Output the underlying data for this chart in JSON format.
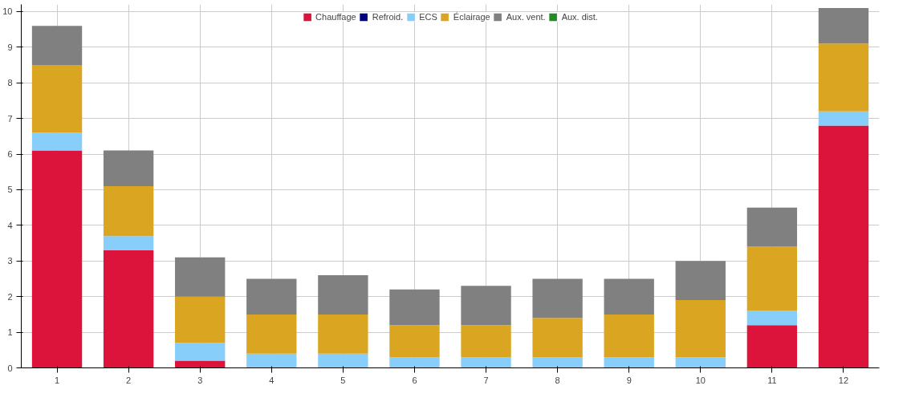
{
  "chart_data": {
    "type": "bar",
    "stacked": true,
    "categories": [
      "1",
      "2",
      "3",
      "4",
      "5",
      "6",
      "7",
      "8",
      "9",
      "10",
      "11",
      "12"
    ],
    "series": [
      {
        "name": "Chauffage",
        "color": "#dc143c",
        "values": [
          6.1,
          3.3,
          0.2,
          0,
          0,
          0,
          0,
          0,
          0,
          0,
          1.2,
          6.8
        ]
      },
      {
        "name": "Refroid.",
        "color": "#000080",
        "values": [
          0,
          0,
          0,
          0,
          0,
          0,
          0,
          0,
          0,
          0,
          0,
          0
        ]
      },
      {
        "name": "ECS",
        "color": "#87cefa",
        "values": [
          0.5,
          0.4,
          0.5,
          0.4,
          0.4,
          0.3,
          0.3,
          0.3,
          0.3,
          0.3,
          0.4,
          0.4
        ]
      },
      {
        "name": "Éclairage",
        "color": "#daa520",
        "values": [
          1.9,
          1.4,
          1.3,
          1.1,
          1.1,
          0.9,
          0.9,
          1.1,
          1.2,
          1.6,
          1.8,
          1.9
        ]
      },
      {
        "name": "Aux. vent.",
        "color": "#808080",
        "values": [
          1.1,
          1.0,
          1.1,
          1.0,
          1.1,
          1.0,
          1.1,
          1.1,
          1.0,
          1.1,
          1.1,
          1.0
        ]
      },
      {
        "name": "Aux. dist.",
        "color": "#228b22",
        "values": [
          0,
          0,
          0,
          0,
          0,
          0,
          0,
          0,
          0,
          0,
          0,
          0
        ]
      }
    ],
    "ylim": [
      0,
      10.2
    ],
    "yticks": [
      0,
      1,
      2,
      3,
      4,
      5,
      6,
      7,
      8,
      9,
      10
    ],
    "grid": true,
    "legend": "top"
  }
}
